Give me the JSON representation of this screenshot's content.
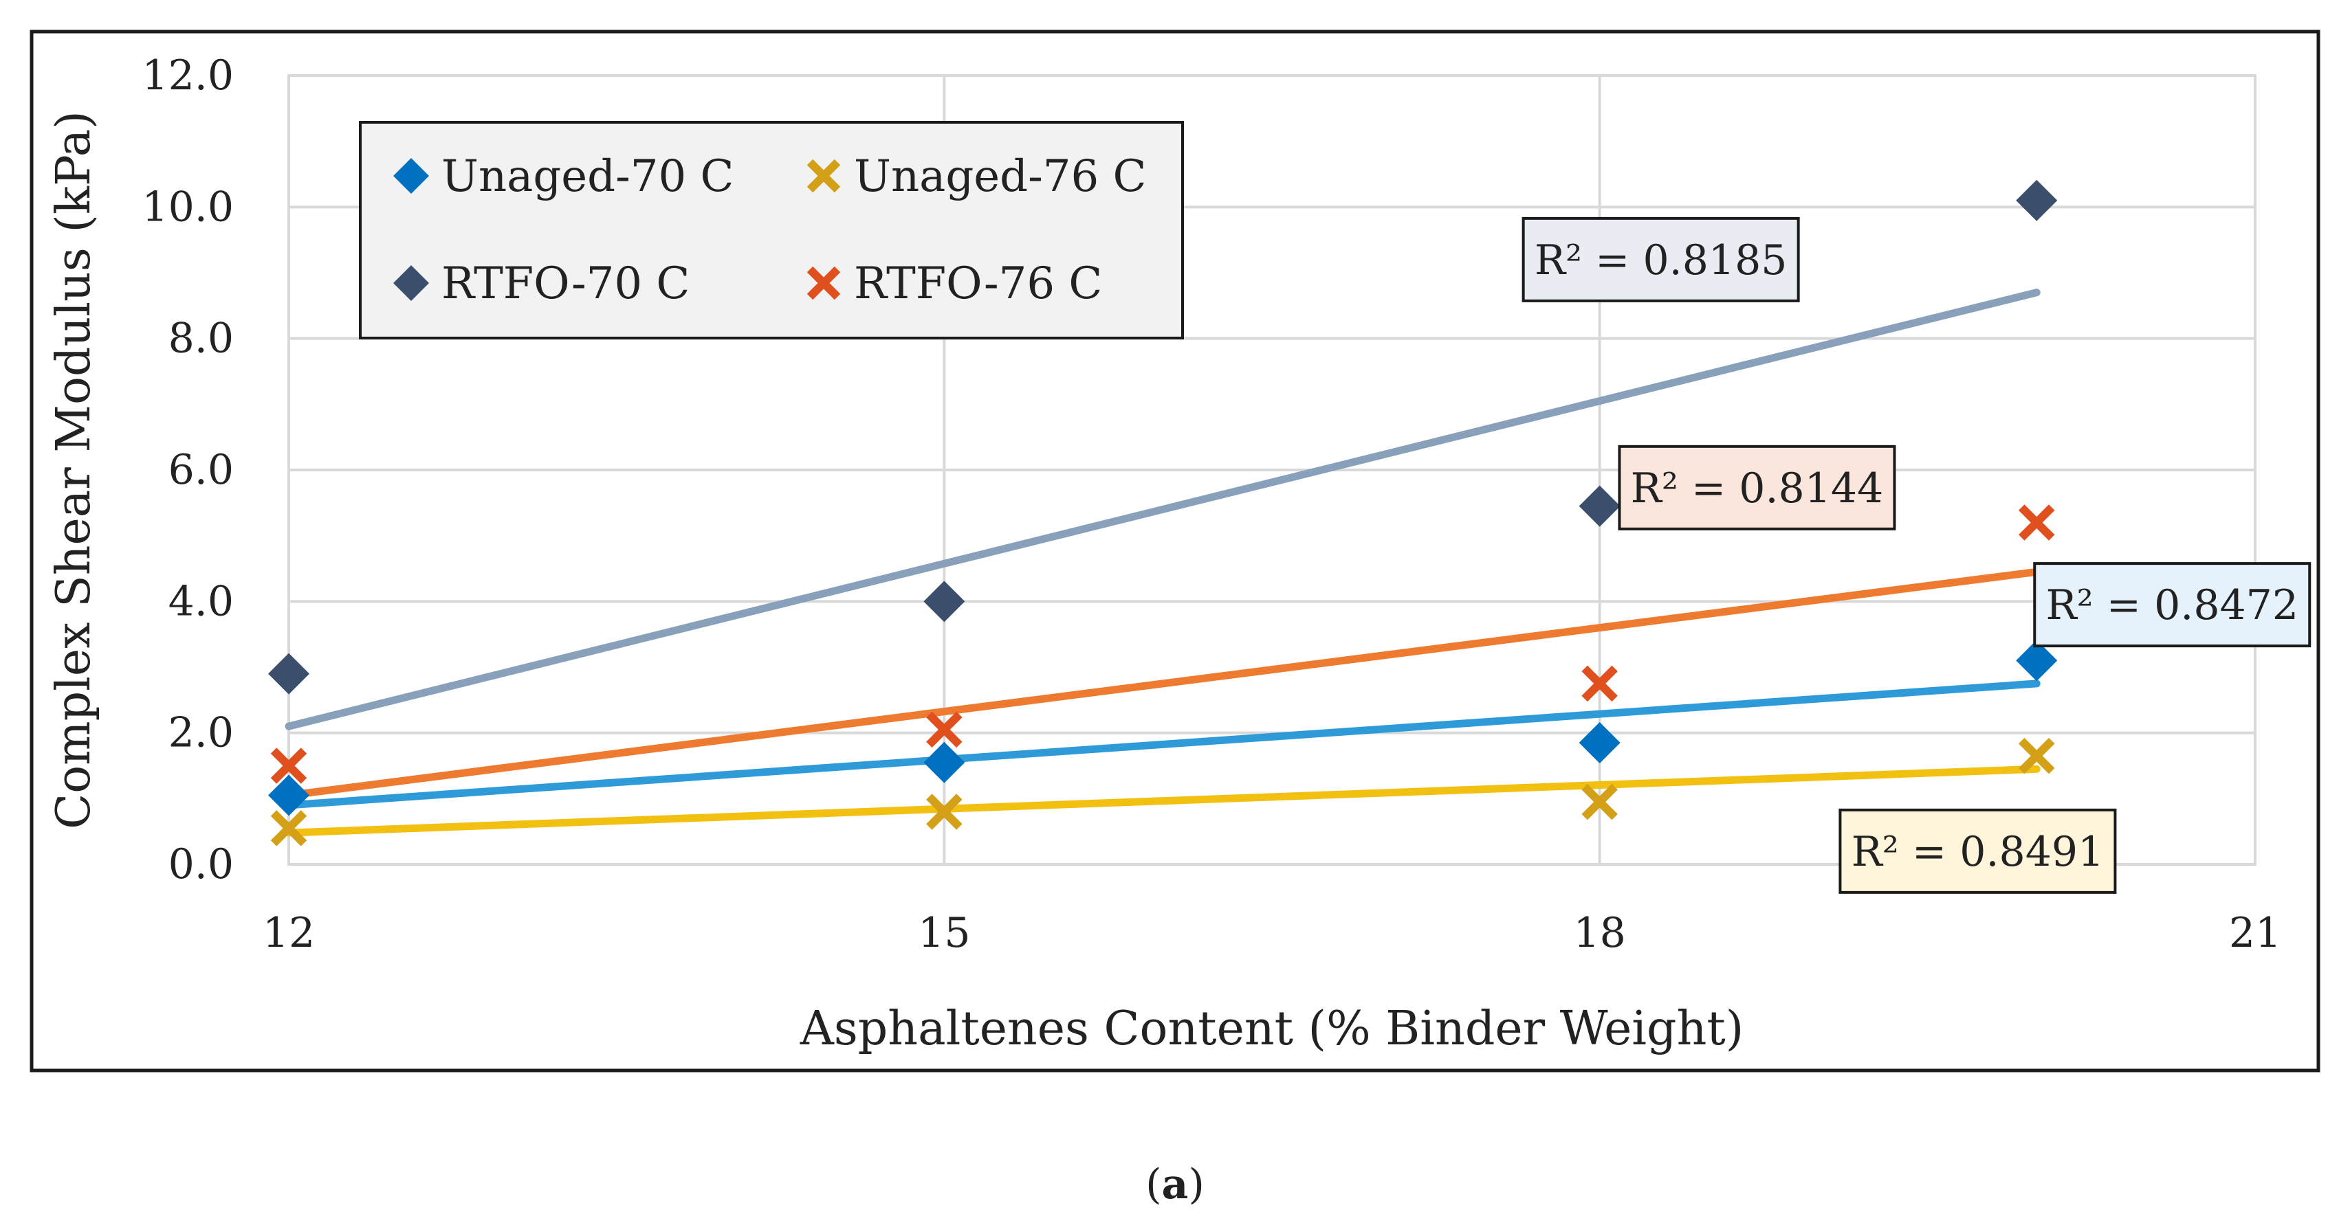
{
  "chart_data": {
    "type": "scatter",
    "title": "",
    "xlabel": "Asphaltenes Content (% Binder Weight)",
    "ylabel": "Complex Shear Modulus (kPa)",
    "xlim": [
      12,
      21
    ],
    "ylim": [
      0,
      12
    ],
    "xticks": [
      12,
      15,
      18,
      21
    ],
    "yticks": [
      0,
      2,
      4,
      6,
      8,
      10,
      12
    ],
    "xtick_labels": [
      "12",
      "15",
      "18",
      "21"
    ],
    "ytick_labels": [
      "0.0",
      "2.0",
      "4.0",
      "6.0",
      "8.0",
      "10.0",
      "12.0"
    ],
    "grid": true,
    "legend_position": "top-left",
    "series": [
      {
        "name": "Unaged-70 C",
        "marker": "diamond",
        "marker_color": "#0070C0",
        "trend_color": "#2E9BD8",
        "x": [
          12,
          15,
          18,
          20
        ],
        "y": [
          1.05,
          1.55,
          1.85,
          3.1
        ],
        "trendline": {
          "x": [
            12,
            20
          ],
          "y": [
            0.9,
            2.75
          ]
        },
        "r2_label": "R² = 0.8472",
        "r2_fill": "#E6F2FB"
      },
      {
        "name": "Unaged-76 C",
        "marker": "x",
        "marker_color": "#D4A017",
        "trend_color": "#F2C010",
        "x": [
          12,
          15,
          18,
          20
        ],
        "y": [
          0.55,
          0.8,
          0.95,
          1.65
        ],
        "trendline": {
          "x": [
            12,
            20
          ],
          "y": [
            0.48,
            1.45
          ]
        },
        "r2_label": "R² = 0.8491",
        "r2_fill": "#FFF5DB"
      },
      {
        "name": "RTFO-70 C",
        "marker": "diamond",
        "marker_color": "#3B4E6B",
        "trend_color": "#89A0BB",
        "x": [
          12,
          15,
          18,
          20
        ],
        "y": [
          2.9,
          4.0,
          5.45,
          10.1
        ],
        "trendline": {
          "x": [
            12,
            20
          ],
          "y": [
            2.1,
            8.7
          ]
        },
        "r2_label": "R² = 0.8185",
        "r2_fill": "#E9ECF2"
      },
      {
        "name": "RTFO-76 C",
        "marker": "x",
        "marker_color": "#E0501E",
        "trend_color": "#EE7A30",
        "x": [
          12,
          15,
          18,
          20
        ],
        "y": [
          1.5,
          2.05,
          2.75,
          5.2
        ],
        "trendline": {
          "x": [
            12,
            20
          ],
          "y": [
            1.05,
            4.45
          ]
        },
        "r2_label": "R² = 0.8144",
        "r2_fill": "#FBE6DD"
      }
    ],
    "legend_order": [
      0,
      1,
      2,
      3
    ]
  },
  "caption": {
    "open": "(",
    "letter": "a",
    "close": ")"
  }
}
